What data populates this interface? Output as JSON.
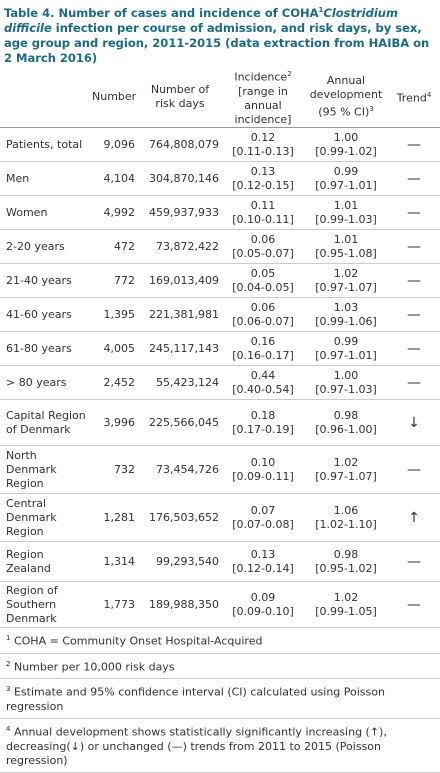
{
  "title": {
    "before": "Table 4. Number of cases and incidence of COHA",
    "sup": "1",
    "italic": "Clostridium difficile",
    "after": " infection per course of admission, and risk days, by sex, age group and region, 2011-2015 (data extraction from HAIBA on 2 March 2016)"
  },
  "header": {
    "number": "Number",
    "risk_days": "Number of risk days",
    "incidence": "Incidence",
    "incidence_sup": "2",
    "incidence_range": "[range in annual incidence]",
    "annual": "Annual development (95 % CI)",
    "annual_sup": "3",
    "trend": "Trend",
    "trend_sup": "4"
  },
  "rows": [
    [
      "Patients, total",
      "9,096",
      "764,808,079",
      "0.12",
      "[0.11-0.13]",
      "1.00",
      "[0.99-1.02]",
      "—"
    ],
    [
      "Men",
      "4,104",
      "304,870,146",
      "0.13",
      "[0.12-0.15]",
      "0.99",
      "[0.97-1.01]",
      "—"
    ],
    [
      "Women",
      "4,992",
      "459,937,933",
      "0.11",
      "[0.10-0.11]",
      "1.01",
      "[0.99-1.03]",
      "—"
    ],
    [
      "2-20 years",
      "472",
      "73,872,422",
      "0.06",
      "[0.05-0.07]",
      "1.01",
      "[0.95-1.08]",
      "—"
    ],
    [
      "21-40 years",
      "772",
      "169,013,409",
      "0.05",
      "[0.04-0.05]",
      "1.02",
      "[0.97-1.07]",
      "—"
    ],
    [
      "41-60 years",
      "1,395",
      "221,381,981",
      "0.06",
      "[0.06-0.07]",
      "1.03",
      "[0.99-1.06]",
      "—"
    ],
    [
      "61-80 years",
      "4,005",
      "245,117,143",
      "0.16",
      "[0.16-0.17]",
      "0.99",
      "[0.97-1.01]",
      "—"
    ],
    [
      "> 80 years",
      "2,452",
      "55,423,124",
      "0.44",
      "[0.40-0.54]",
      "1.00",
      "[0.97-1.03]",
      "—"
    ],
    [
      "Capital Region of Denmark",
      "3,996",
      "225,566,045",
      "0.18",
      "[0.17-0.19]",
      "0.98",
      "[0.96-1.00]",
      "↓"
    ],
    [
      "North Denmark Region",
      "732",
      "73,454,726",
      "0.10",
      "[0.09-0.11]",
      "1.02",
      "[0.97-1.07]",
      "—"
    ],
    [
      "Central Denmark Region",
      "1,281",
      "176,503,652",
      "0.07",
      "[0.07-0.08]",
      "1.06",
      "[1.02-1.10]",
      "↑"
    ],
    [
      "Region Zealand",
      "1,314",
      "99,293,540",
      "0.13",
      "[0.12-0.14]",
      "0.98",
      "[0.95-1.02]",
      "—"
    ],
    [
      "Region of Southern Denmark",
      "1,773",
      "189,988,350",
      "0.09",
      "[0.09-0.10]",
      "1.02",
      "[0.99-1.05]",
      "—"
    ]
  ],
  "footnotes": [
    {
      "mark": "1",
      "text": "COHA = Community Onset Hospital-Acquired"
    },
    {
      "mark": "2",
      "text": "Number per 10,000 risk days"
    },
    {
      "mark": "3",
      "text": "Estimate and 95% confidence interval (CI) calculated using Poisson regression"
    },
    {
      "mark": "4",
      "text": "Annual development shows statistically significantly increasing (↑), decreasing(↓) or unchanged (—) trends from 2011 to 2015 (Poisson regression)"
    }
  ]
}
